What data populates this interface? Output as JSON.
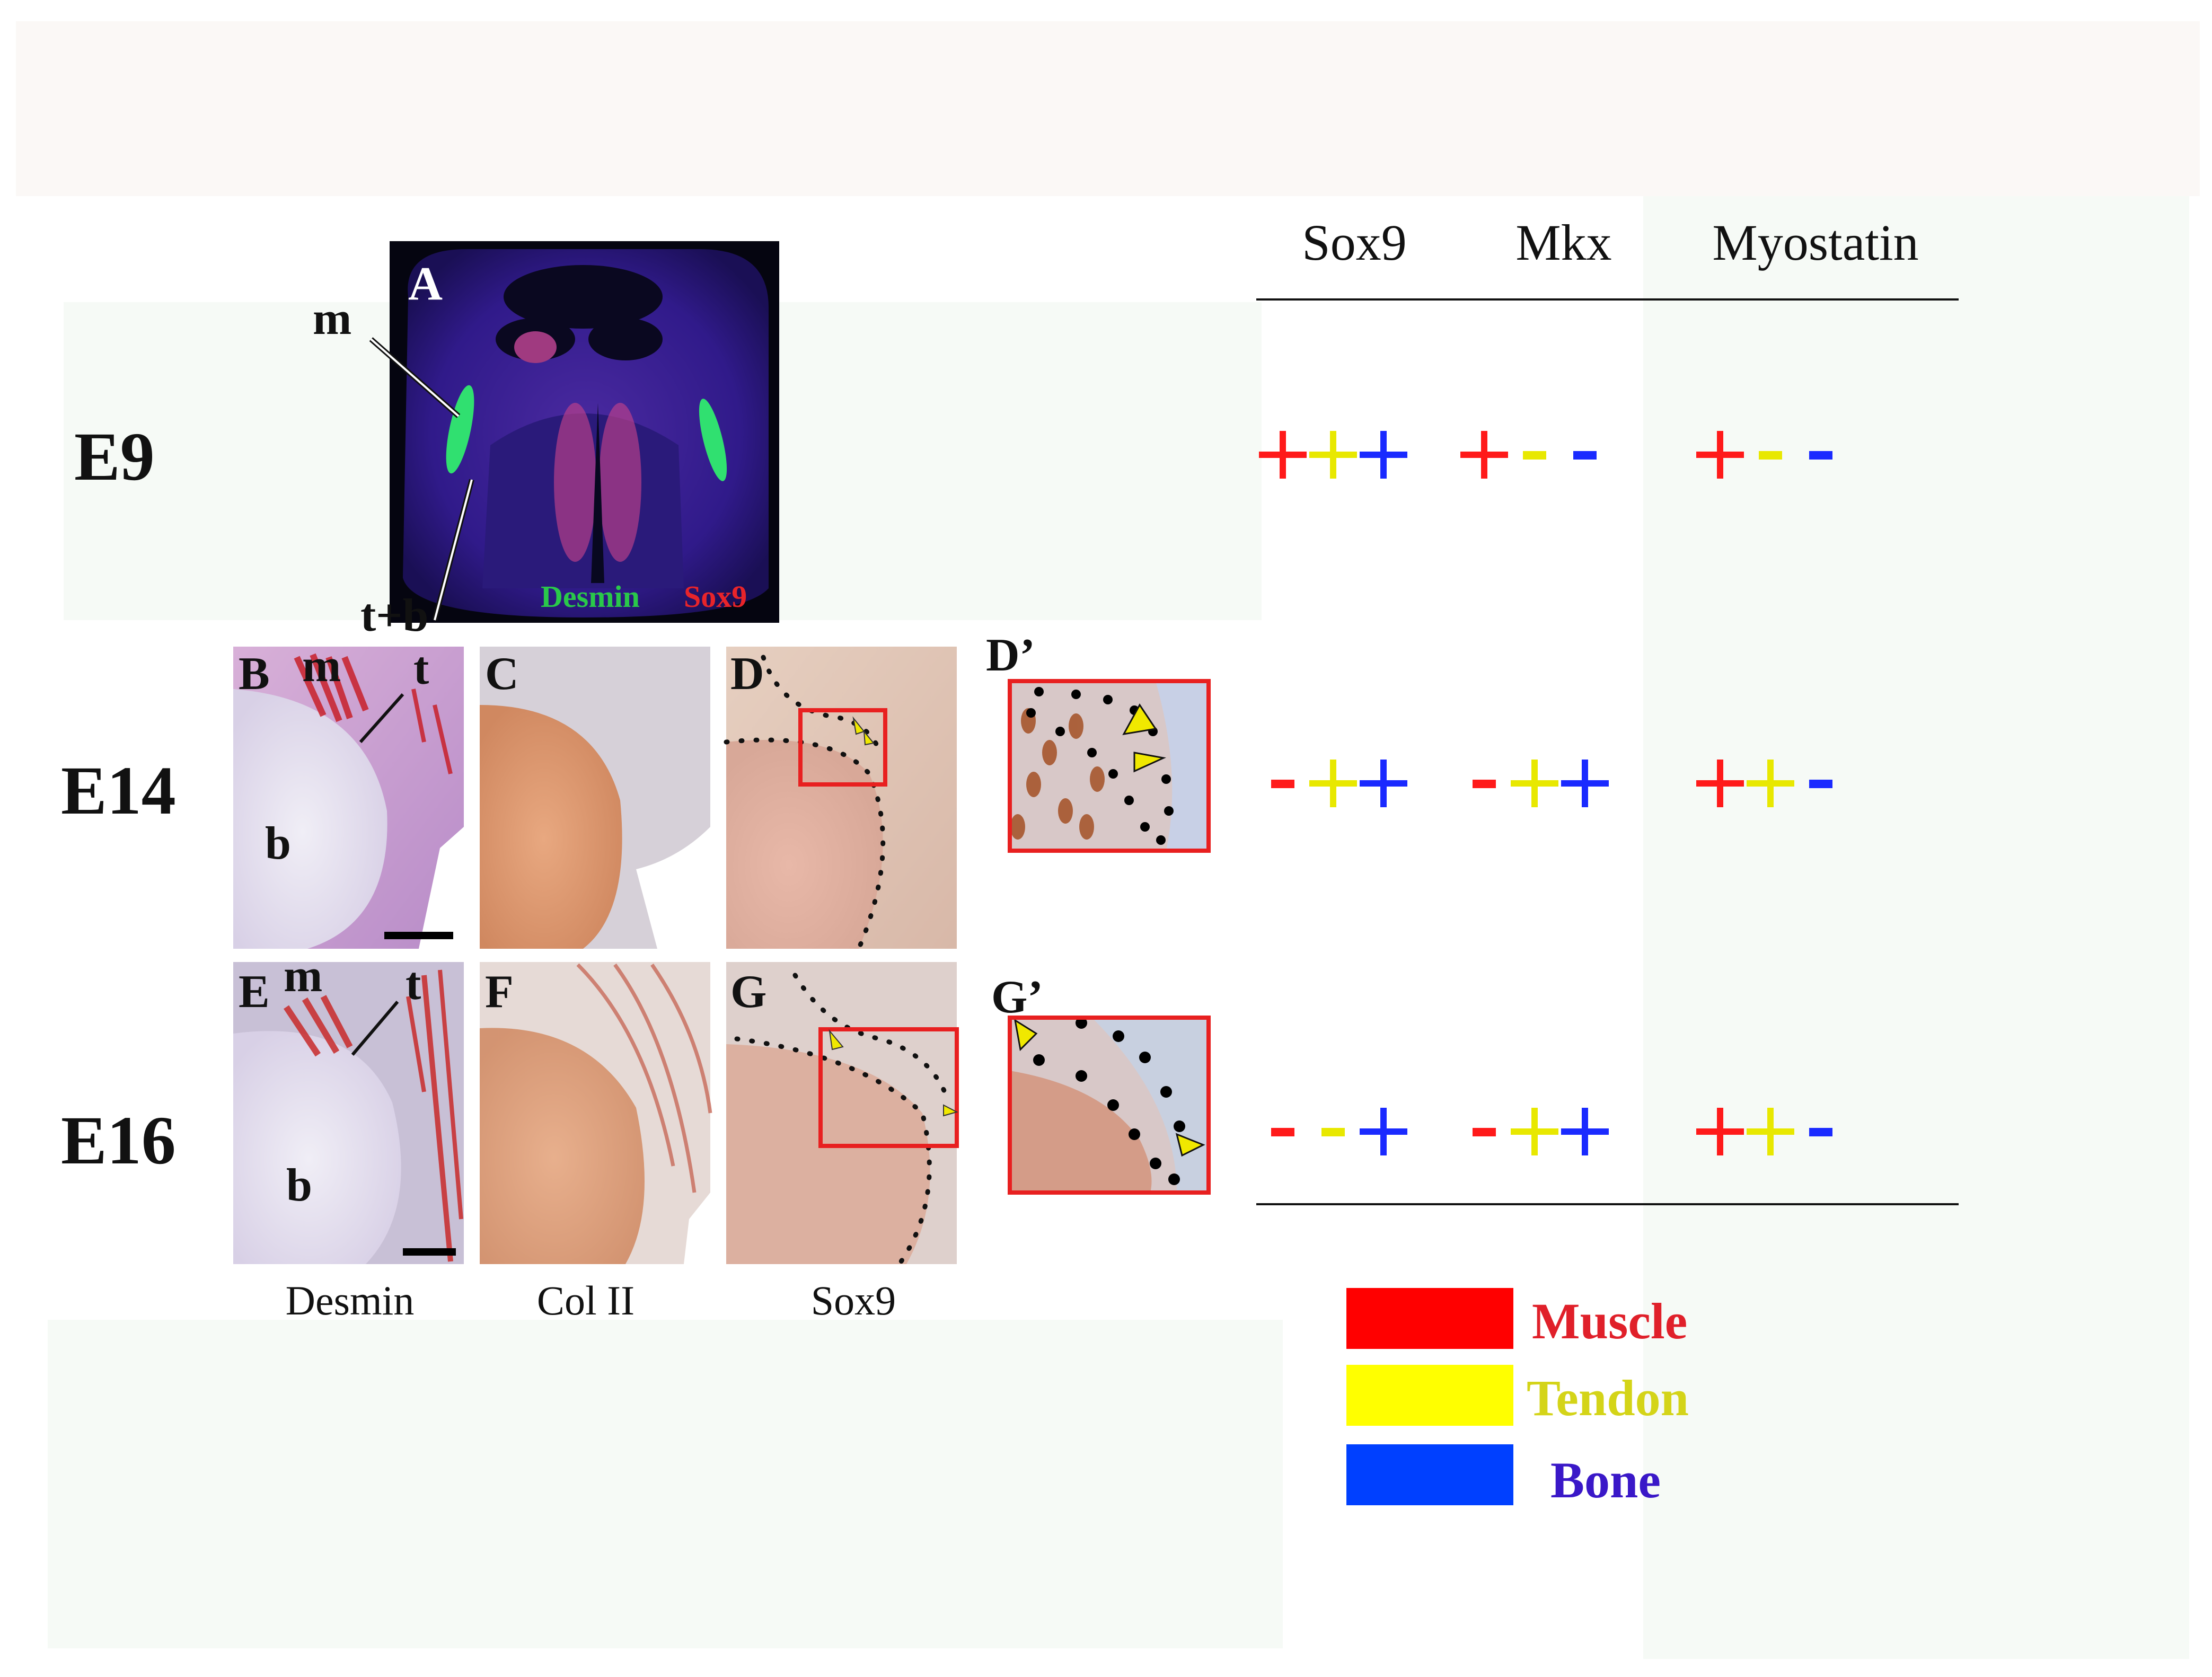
{
  "stages": [
    "E9",
    "E14",
    "E16"
  ],
  "panel_letters": {
    "A": "A",
    "B": "B",
    "C": "C",
    "D": "D",
    "Dp": "D’",
    "E": "E",
    "F": "F",
    "G": "G",
    "Gp": "G’"
  },
  "tissue_labels": {
    "m": "m",
    "t": "t",
    "b": "b",
    "tb": "t+b"
  },
  "stain_labels": {
    "desmin": "Desmin",
    "sox9": "Sox9"
  },
  "column_labels": [
    "Desmin",
    "Col II",
    "Sox9"
  ],
  "table": {
    "headers": [
      "Sox9",
      "Mkx",
      "Myostatin"
    ],
    "rows": [
      {
        "stage": "E9",
        "cells": [
          [
            "+",
            "+",
            "+"
          ],
          [
            "+",
            "-",
            "-"
          ],
          [
            "+",
            "-",
            "-"
          ]
        ]
      },
      {
        "stage": "E14",
        "cells": [
          [
            "-",
            "+",
            "+"
          ],
          [
            "-",
            "+",
            "+"
          ],
          [
            "+",
            "+",
            "-"
          ]
        ]
      },
      {
        "stage": "E16",
        "cells": [
          [
            "-",
            "-",
            "+"
          ],
          [
            "-",
            "+",
            "+"
          ],
          [
            "+",
            "+",
            "-"
          ]
        ]
      }
    ]
  },
  "legend": [
    {
      "label": "Muscle",
      "color": "#ff0000",
      "text_color": "#e0202a"
    },
    {
      "label": "Tendon",
      "color": "#ffff00",
      "text_color": "#d4d418"
    },
    {
      "label": "Bone",
      "color": "#0040ff",
      "text_color": "#3a18c8"
    }
  ],
  "marker_colors": [
    "#ff1a1a",
    "#e8e800",
    "#1a2aff"
  ]
}
